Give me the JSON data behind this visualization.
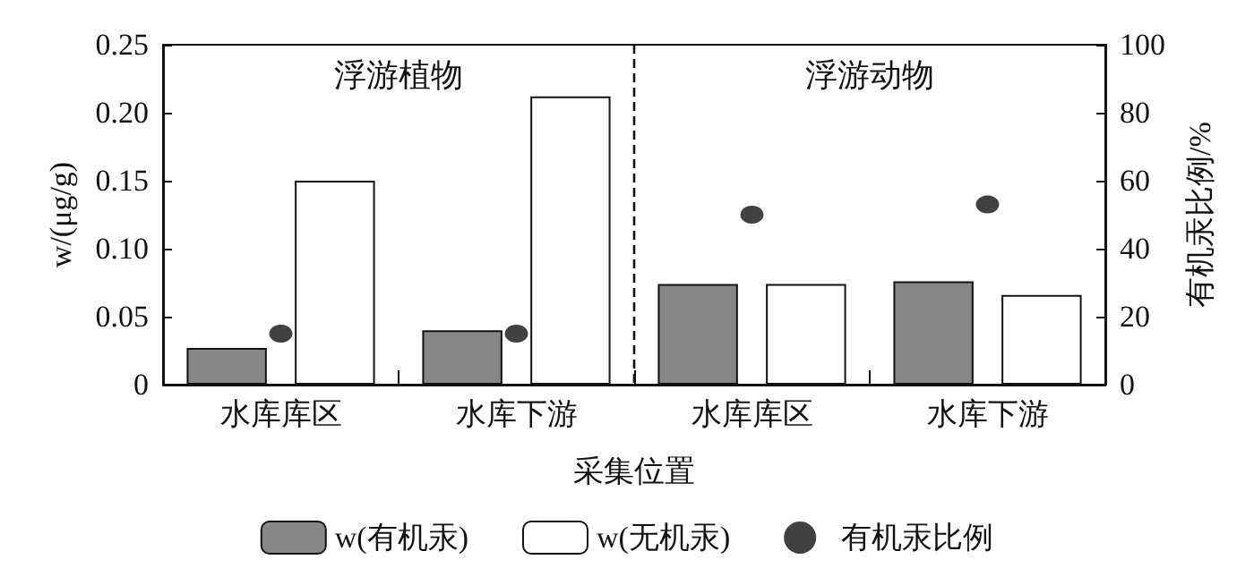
{
  "chart_data": {
    "type": "bar",
    "xlabel": "采集位置",
    "ylabel": "w/(μg/g)",
    "y2label": "有机汞比例/%",
    "categories": [
      "水库库区",
      "水库下游",
      "水库库区",
      "水库下游"
    ],
    "series": [
      {
        "name": "w(有机汞)",
        "color": "#878787",
        "values": [
          0.027,
          0.04,
          0.074,
          0.076
        ]
      },
      {
        "name": "w(无机汞)",
        "color": "#ffffff",
        "values": [
          0.15,
          0.212,
          0.074,
          0.066
        ]
      },
      {
        "name": "有机汞比例",
        "type": "scatter",
        "axis": "y2",
        "color": "#111111",
        "values": [
          15,
          15,
          50,
          53
        ]
      }
    ],
    "ylim": [
      0,
      0.25
    ],
    "yticks": [
      0,
      {
        "value": 0.05,
        "label": "0.05"
      },
      {
        "value": 0.1,
        "label": "0.10"
      },
      {
        "value": 0.15,
        "label": "0.15"
      },
      {
        "value": 0.2,
        "label": "0.20"
      },
      {
        "value": 0.25,
        "label": "0.25"
      }
    ],
    "y2lim": [
      0,
      100
    ],
    "y2ticks": [
      0,
      20,
      40,
      60,
      80,
      100
    ],
    "annotations": [
      "浮游植物",
      "浮游动物"
    ],
    "grid": false,
    "legend": "bottom",
    "marker": "circle"
  }
}
